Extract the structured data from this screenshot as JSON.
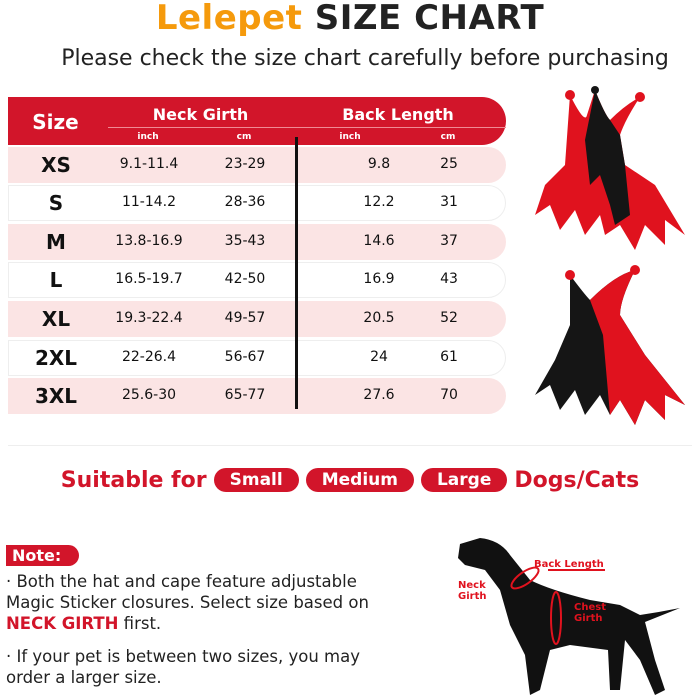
{
  "header": {
    "brand": "Lelepet",
    "title": "SIZE CHART",
    "subtitle": "Please check the size chart carefully before purchasing"
  },
  "table": {
    "headers": {
      "size": "Size",
      "neck": "Neck Girth",
      "back": "Back Length",
      "inch": "inch",
      "cm": "cm"
    },
    "rows": [
      {
        "size": "XS",
        "neck_in": "9.1-11.4",
        "neck_cm": "23-29",
        "back_in": "9.8",
        "back_cm": "25"
      },
      {
        "size": "S",
        "neck_in": "11-14.2",
        "neck_cm": "28-36",
        "back_in": "12.2",
        "back_cm": "31"
      },
      {
        "size": "M",
        "neck_in": "13.8-16.9",
        "neck_cm": "35-43",
        "back_in": "14.6",
        "back_cm": "37"
      },
      {
        "size": "L",
        "neck_in": "16.5-19.7",
        "neck_cm": "42-50",
        "back_in": "16.9",
        "back_cm": "43"
      },
      {
        "size": "XL",
        "neck_in": "19.3-22.4",
        "neck_cm": "49-57",
        "back_in": "20.5",
        "back_cm": "52"
      },
      {
        "size": "2XL",
        "neck_in": "22-26.4",
        "neck_cm": "56-67",
        "back_in": "24",
        "back_cm": "61"
      },
      {
        "size": "3XL",
        "neck_in": "25.6-30",
        "neck_cm": "65-77",
        "back_in": "27.6",
        "back_cm": "70"
      }
    ]
  },
  "suitable": {
    "prefix": "Suitable for",
    "tags": [
      "Small",
      "Medium",
      "Large"
    ],
    "suffix": "Dogs/Cats"
  },
  "note": {
    "label": "Note:",
    "line1_a": "· Both the hat and cape feature adjustable Magic Sticker closures. Select size based on ",
    "line1_b": "NECK GIRTH",
    "line1_c": " first.",
    "line2": "· If your pet is between two sizes, you may order a larger size."
  },
  "diagram": {
    "back_length": "Back Length",
    "neck_girth_1": "Neck",
    "neck_girth_2": "Girth",
    "chest_girth_1": "Chest",
    "chest_girth_2": "Girth"
  },
  "colors": {
    "accent": "#d2152a",
    "brand_orange": "#f59a0c",
    "row_pink": "#fbe4e4"
  }
}
